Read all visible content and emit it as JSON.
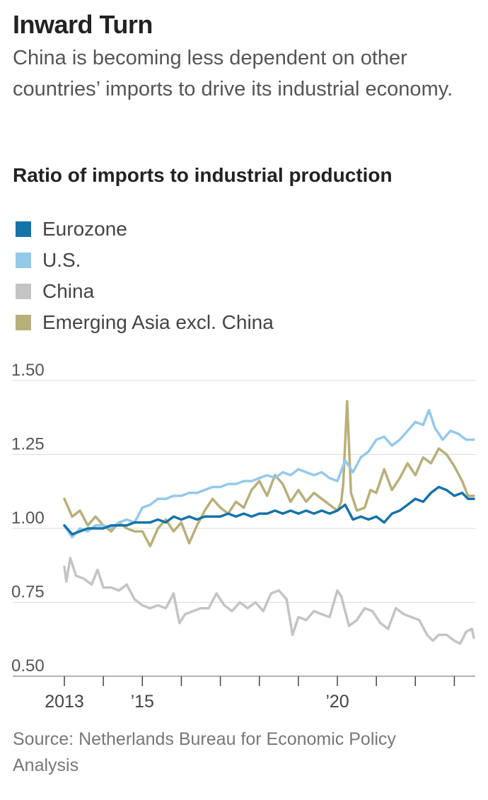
{
  "title": "Inward Turn",
  "subtitle": "China is becoming less dependent on other countries’ imports to drive its industrial economy.",
  "source": "Source: Netherlands Bureau for Economic Policy Analysis",
  "chart_data": {
    "type": "line",
    "title": "Ratio of imports to industrial production",
    "xlabel": "",
    "ylabel": "",
    "xlim": [
      2013.0,
      2023.5
    ],
    "ylim": [
      0.5,
      1.5
    ],
    "yticks": [
      {
        "value": 0.5,
        "label": "0.50"
      },
      {
        "value": 0.75,
        "label": "0.75"
      },
      {
        "value": 1.0,
        "label": "1.00"
      },
      {
        "value": 1.25,
        "label": "1.25"
      },
      {
        "value": 1.5,
        "label": "1.50"
      }
    ],
    "xticks": [
      {
        "value": 2013,
        "label": "2013"
      },
      {
        "value": 2014,
        "label": ""
      },
      {
        "value": 2015,
        "label": "’15"
      },
      {
        "value": 2016,
        "label": ""
      },
      {
        "value": 2017,
        "label": ""
      },
      {
        "value": 2018,
        "label": ""
      },
      {
        "value": 2019,
        "label": ""
      },
      {
        "value": 2020,
        "label": "’20"
      },
      {
        "value": 2021,
        "label": ""
      },
      {
        "value": 2022,
        "label": ""
      },
      {
        "value": 2023,
        "label": ""
      }
    ],
    "grid": "horizontal",
    "legend_position": "top-left",
    "series": [
      {
        "name": "Emerging Asia excl. China",
        "color": "#b7b07a",
        "points": [
          [
            2013.0,
            1.1
          ],
          [
            2013.2,
            1.04
          ],
          [
            2013.4,
            1.06
          ],
          [
            2013.6,
            1.01
          ],
          [
            2013.8,
            1.04
          ],
          [
            2014.0,
            1.01
          ],
          [
            2014.2,
            0.99
          ],
          [
            2014.4,
            1.02
          ],
          [
            2014.6,
            1.0
          ],
          [
            2014.8,
            0.99
          ],
          [
            2015.0,
            0.99
          ],
          [
            2015.2,
            0.94
          ],
          [
            2015.4,
            1.0
          ],
          [
            2015.6,
            1.03
          ],
          [
            2015.8,
            0.99
          ],
          [
            2016.0,
            1.02
          ],
          [
            2016.2,
            0.95
          ],
          [
            2016.4,
            1.01
          ],
          [
            2016.6,
            1.06
          ],
          [
            2016.8,
            1.1
          ],
          [
            2017.0,
            1.07
          ],
          [
            2017.2,
            1.05
          ],
          [
            2017.4,
            1.09
          ],
          [
            2017.6,
            1.07
          ],
          [
            2017.8,
            1.13
          ],
          [
            2018.0,
            1.16
          ],
          [
            2018.2,
            1.11
          ],
          [
            2018.4,
            1.18
          ],
          [
            2018.6,
            1.15
          ],
          [
            2018.8,
            1.09
          ],
          [
            2019.0,
            1.13
          ],
          [
            2019.2,
            1.09
          ],
          [
            2019.4,
            1.12
          ],
          [
            2019.6,
            1.1
          ],
          [
            2019.8,
            1.08
          ],
          [
            2020.0,
            1.06
          ],
          [
            2020.1,
            1.09
          ],
          [
            2020.15,
            1.15
          ],
          [
            2020.25,
            1.43
          ],
          [
            2020.35,
            1.12
          ],
          [
            2020.5,
            1.06
          ],
          [
            2020.7,
            1.07
          ],
          [
            2020.85,
            1.13
          ],
          [
            2021.0,
            1.12
          ],
          [
            2021.2,
            1.2
          ],
          [
            2021.4,
            1.13
          ],
          [
            2021.6,
            1.17
          ],
          [
            2021.8,
            1.22
          ],
          [
            2022.0,
            1.18
          ],
          [
            2022.2,
            1.24
          ],
          [
            2022.4,
            1.22
          ],
          [
            2022.6,
            1.27
          ],
          [
            2022.8,
            1.25
          ],
          [
            2023.0,
            1.21
          ],
          [
            2023.2,
            1.16
          ],
          [
            2023.35,
            1.11
          ],
          [
            2023.5,
            1.11
          ]
        ]
      },
      {
        "name": "China",
        "color": "#c4c4c4",
        "points": [
          [
            2013.0,
            0.87
          ],
          [
            2013.05,
            0.82
          ],
          [
            2013.15,
            0.9
          ],
          [
            2013.3,
            0.84
          ],
          [
            2013.5,
            0.83
          ],
          [
            2013.7,
            0.81
          ],
          [
            2013.85,
            0.86
          ],
          [
            2014.0,
            0.8
          ],
          [
            2014.2,
            0.8
          ],
          [
            2014.4,
            0.79
          ],
          [
            2014.6,
            0.81
          ],
          [
            2014.8,
            0.76
          ],
          [
            2015.0,
            0.74
          ],
          [
            2015.2,
            0.73
          ],
          [
            2015.4,
            0.74
          ],
          [
            2015.6,
            0.73
          ],
          [
            2015.8,
            0.78
          ],
          [
            2015.95,
            0.68
          ],
          [
            2016.1,
            0.71
          ],
          [
            2016.3,
            0.72
          ],
          [
            2016.5,
            0.73
          ],
          [
            2016.7,
            0.73
          ],
          [
            2016.9,
            0.78
          ],
          [
            2017.1,
            0.74
          ],
          [
            2017.3,
            0.72
          ],
          [
            2017.5,
            0.75
          ],
          [
            2017.7,
            0.73
          ],
          [
            2017.9,
            0.75
          ],
          [
            2018.1,
            0.72
          ],
          [
            2018.3,
            0.78
          ],
          [
            2018.5,
            0.79
          ],
          [
            2018.7,
            0.76
          ],
          [
            2018.85,
            0.64
          ],
          [
            2019.0,
            0.7
          ],
          [
            2019.2,
            0.69
          ],
          [
            2019.4,
            0.72
          ],
          [
            2019.6,
            0.71
          ],
          [
            2019.8,
            0.7
          ],
          [
            2020.0,
            0.79
          ],
          [
            2020.1,
            0.77
          ],
          [
            2020.3,
            0.67
          ],
          [
            2020.5,
            0.69
          ],
          [
            2020.7,
            0.73
          ],
          [
            2020.9,
            0.72
          ],
          [
            2021.1,
            0.68
          ],
          [
            2021.3,
            0.66
          ],
          [
            2021.5,
            0.73
          ],
          [
            2021.7,
            0.71
          ],
          [
            2021.9,
            0.7
          ],
          [
            2022.1,
            0.69
          ],
          [
            2022.3,
            0.64
          ],
          [
            2022.45,
            0.62
          ],
          [
            2022.6,
            0.64
          ],
          [
            2022.8,
            0.64
          ],
          [
            2023.0,
            0.62
          ],
          [
            2023.15,
            0.61
          ],
          [
            2023.3,
            0.65
          ],
          [
            2023.45,
            0.66
          ],
          [
            2023.5,
            0.63
          ]
        ]
      },
      {
        "name": "U.S.",
        "color": "#94c9ea",
        "points": [
          [
            2013.0,
            1.01
          ],
          [
            2013.2,
            0.97
          ],
          [
            2013.4,
            1.0
          ],
          [
            2013.6,
            0.99
          ],
          [
            2013.8,
            1.01
          ],
          [
            2014.0,
            1.01
          ],
          [
            2014.2,
            1.0
          ],
          [
            2014.4,
            1.02
          ],
          [
            2014.6,
            1.03
          ],
          [
            2014.8,
            1.02
          ],
          [
            2015.0,
            1.07
          ],
          [
            2015.2,
            1.08
          ],
          [
            2015.4,
            1.1
          ],
          [
            2015.6,
            1.1
          ],
          [
            2015.8,
            1.11
          ],
          [
            2016.0,
            1.11
          ],
          [
            2016.2,
            1.12
          ],
          [
            2016.4,
            1.12
          ],
          [
            2016.6,
            1.13
          ],
          [
            2016.8,
            1.14
          ],
          [
            2017.0,
            1.14
          ],
          [
            2017.2,
            1.15
          ],
          [
            2017.4,
            1.15
          ],
          [
            2017.6,
            1.16
          ],
          [
            2017.8,
            1.16
          ],
          [
            2018.0,
            1.17
          ],
          [
            2018.2,
            1.18
          ],
          [
            2018.4,
            1.17
          ],
          [
            2018.6,
            1.19
          ],
          [
            2018.8,
            1.18
          ],
          [
            2019.0,
            1.2
          ],
          [
            2019.2,
            1.19
          ],
          [
            2019.4,
            1.18
          ],
          [
            2019.6,
            1.19
          ],
          [
            2019.8,
            1.17
          ],
          [
            2020.0,
            1.16
          ],
          [
            2020.2,
            1.23
          ],
          [
            2020.4,
            1.19
          ],
          [
            2020.6,
            1.24
          ],
          [
            2020.8,
            1.26
          ],
          [
            2021.0,
            1.3
          ],
          [
            2021.2,
            1.31
          ],
          [
            2021.4,
            1.28
          ],
          [
            2021.6,
            1.3
          ],
          [
            2021.8,
            1.33
          ],
          [
            2022.0,
            1.36
          ],
          [
            2022.2,
            1.35
          ],
          [
            2022.35,
            1.4
          ],
          [
            2022.5,
            1.34
          ],
          [
            2022.7,
            1.3
          ],
          [
            2022.9,
            1.33
          ],
          [
            2023.1,
            1.32
          ],
          [
            2023.3,
            1.3
          ],
          [
            2023.5,
            1.3
          ]
        ]
      },
      {
        "name": "Eurozone",
        "color": "#1573a8",
        "points": [
          [
            2013.0,
            1.01
          ],
          [
            2013.2,
            0.98
          ],
          [
            2013.4,
            0.99
          ],
          [
            2013.6,
            1.0
          ],
          [
            2013.8,
            1.0
          ],
          [
            2014.0,
            1.0
          ],
          [
            2014.2,
            1.01
          ],
          [
            2014.4,
            1.01
          ],
          [
            2014.6,
            1.01
          ],
          [
            2014.8,
            1.02
          ],
          [
            2015.0,
            1.02
          ],
          [
            2015.2,
            1.02
          ],
          [
            2015.4,
            1.03
          ],
          [
            2015.6,
            1.02
          ],
          [
            2015.8,
            1.04
          ],
          [
            2016.0,
            1.03
          ],
          [
            2016.2,
            1.04
          ],
          [
            2016.4,
            1.03
          ],
          [
            2016.6,
            1.04
          ],
          [
            2016.8,
            1.04
          ],
          [
            2017.0,
            1.04
          ],
          [
            2017.2,
            1.05
          ],
          [
            2017.4,
            1.04
          ],
          [
            2017.6,
            1.05
          ],
          [
            2017.8,
            1.04
          ],
          [
            2018.0,
            1.05
          ],
          [
            2018.2,
            1.05
          ],
          [
            2018.4,
            1.06
          ],
          [
            2018.6,
            1.05
          ],
          [
            2018.8,
            1.06
          ],
          [
            2019.0,
            1.05
          ],
          [
            2019.2,
            1.06
          ],
          [
            2019.4,
            1.05
          ],
          [
            2019.6,
            1.06
          ],
          [
            2019.8,
            1.05
          ],
          [
            2020.0,
            1.06
          ],
          [
            2020.2,
            1.08
          ],
          [
            2020.4,
            1.03
          ],
          [
            2020.6,
            1.04
          ],
          [
            2020.8,
            1.03
          ],
          [
            2021.0,
            1.04
          ],
          [
            2021.2,
            1.02
          ],
          [
            2021.4,
            1.05
          ],
          [
            2021.6,
            1.06
          ],
          [
            2021.8,
            1.08
          ],
          [
            2022.0,
            1.1
          ],
          [
            2022.2,
            1.09
          ],
          [
            2022.4,
            1.12
          ],
          [
            2022.6,
            1.14
          ],
          [
            2022.8,
            1.13
          ],
          [
            2023.0,
            1.11
          ],
          [
            2023.2,
            1.12
          ],
          [
            2023.35,
            1.1
          ],
          [
            2023.5,
            1.1
          ]
        ]
      }
    ]
  }
}
